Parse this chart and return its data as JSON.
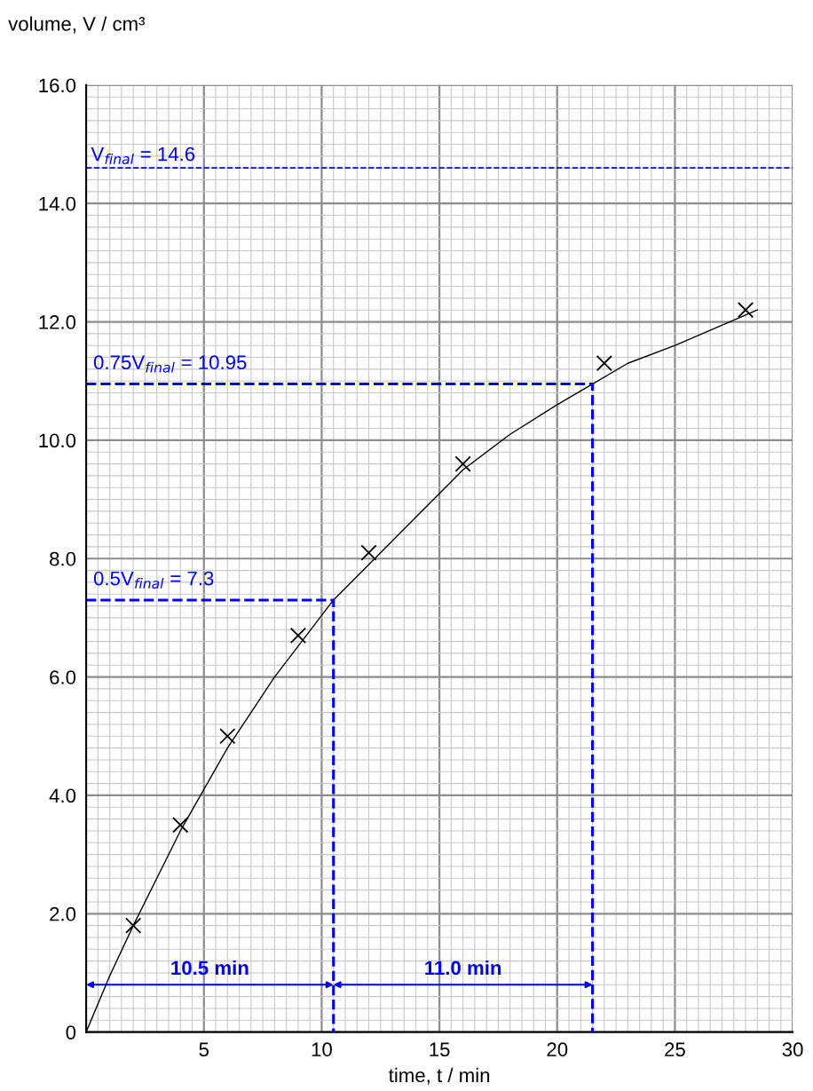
{
  "chart_data": {
    "type": "scatter",
    "xlabel": "time, t / min",
    "ylabel": "volume, V / cm³",
    "xlim": [
      0,
      30
    ],
    "ylim": [
      0,
      16
    ],
    "xticks": [
      5,
      10,
      15,
      20,
      25,
      30
    ],
    "yticks": [
      {
        "value": 0,
        "label": "0"
      },
      {
        "value": 2,
        "label": "2.0"
      },
      {
        "value": 4,
        "label": "4.0"
      },
      {
        "value": 6,
        "label": "6.0"
      },
      {
        "value": 8,
        "label": "8.0"
      },
      {
        "value": 10,
        "label": "10.0"
      },
      {
        "value": 12,
        "label": "12.0"
      },
      {
        "value": 14,
        "label": "14.0"
      },
      {
        "value": 16,
        "label": "16.0"
      }
    ],
    "grid": true,
    "series": [
      {
        "color": "#000000",
        "marker": "cross",
        "x": [
          2,
          4,
          6,
          9,
          12,
          16,
          22,
          28
        ],
        "values": [
          1.8,
          3.5,
          5.0,
          6.7,
          8.1,
          9.6,
          11.3,
          12.2
        ]
      },
      {
        "type": "line",
        "color": "#000000",
        "marker": "none",
        "line_style": "solid",
        "x": [
          0,
          1,
          2,
          4,
          6,
          8,
          10.5,
          12,
          14,
          16,
          18,
          20,
          21.5,
          23,
          25,
          28.5
        ],
        "values": [
          0,
          0.95,
          1.8,
          3.4,
          4.8,
          6.0,
          7.3,
          7.9,
          8.7,
          9.5,
          10.1,
          10.6,
          10.95,
          11.3,
          11.6,
          12.2
        ]
      },
      {
        "type": "line",
        "color": "#0000ff",
        "marker": "none",
        "line_style": "dashed",
        "x": [
          0,
          10.5,
          10.5
        ],
        "values": [
          7.3,
          7.3,
          0
        ]
      },
      {
        "type": "line",
        "color": "#0000ff",
        "marker": "none",
        "line_style": "dashed",
        "x": [
          0,
          21.5,
          21.5
        ],
        "values": [
          10.95,
          10.95,
          0
        ]
      }
    ],
    "ref_lines": [
      {
        "axis": "y",
        "value": 14.6,
        "label": "V$_{final}$ = 14.6",
        "color": "#0000ff",
        "line_style": "dashed"
      }
    ],
    "annotations": [
      {
        "text": "0.75V$_{final}$ = 10.95",
        "x": 0,
        "y": 10.95
      },
      {
        "text": "0.5V$_{final}$ = 7.3",
        "x": 0,
        "y": 7.3
      },
      "10.5 min",
      "11.0 min"
    ]
  }
}
